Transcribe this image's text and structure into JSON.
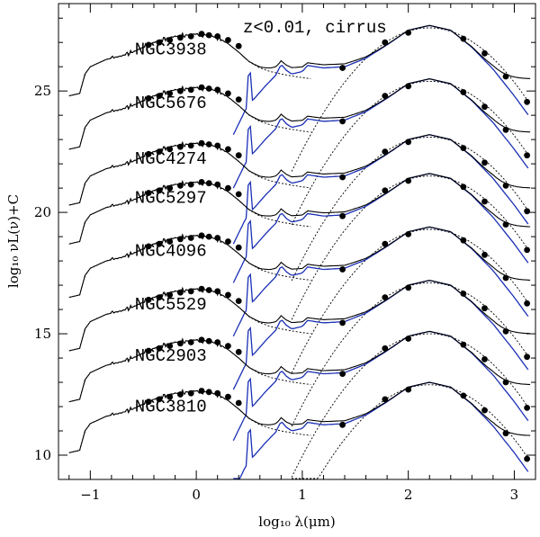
{
  "chart_data": {
    "type": "line",
    "title": "z<0.01, cirrus",
    "xlabel": "log₁₀ λ(μm)",
    "ylabel": "log₁₀ νL(ν)+C",
    "xlim": [
      -1.3,
      3.2
    ],
    "ylim": [
      9.0,
      28.6
    ],
    "x_ticks": [
      -1,
      0,
      1,
      2,
      3
    ],
    "y_ticks": [
      10,
      15,
      20,
      25
    ],
    "x_tick_labels": [
      "−1",
      "0",
      "1",
      "2",
      "3"
    ],
    "y_tick_labels": [
      "10",
      "15",
      "20",
      "25"
    ],
    "colors": {
      "total": "#000000",
      "starburst": "#1a2fb5",
      "component": "#000000",
      "points": "#000000"
    },
    "galaxies": [
      {
        "name": "NGC3938",
        "offset": 25.4
      },
      {
        "name": "NGC5676",
        "offset": 23.2
      },
      {
        "name": "NGC4274",
        "offset": 20.9
      },
      {
        "name": "NGC5297",
        "offset": 19.3
      },
      {
        "name": "NGC4096",
        "offset": 17.1
      },
      {
        "name": "NGC5529",
        "offset": 14.9
      },
      {
        "name": "NGC2903",
        "offset": 12.8
      },
      {
        "name": "NGC3810",
        "offset": 10.7
      }
    ],
    "stellar_template": {
      "x": [
        -1.2,
        -1.1,
        -1.05,
        -1.0,
        -0.95,
        -0.9,
        -0.85,
        -0.8,
        -0.7,
        -0.6,
        -0.5,
        -0.4,
        -0.3,
        -0.2,
        -0.1,
        0.0,
        0.1,
        0.2,
        0.3,
        0.4,
        0.5,
        0.6,
        0.7,
        0.8,
        0.9,
        1.0,
        1.1
      ],
      "y": [
        -0.6,
        -0.5,
        0.3,
        0.6,
        0.7,
        0.8,
        0.9,
        0.95,
        1.05,
        1.2,
        1.4,
        1.6,
        1.75,
        1.85,
        1.9,
        1.95,
        1.9,
        1.8,
        1.55,
        1.2,
        0.8,
        0.55,
        0.4,
        0.3,
        0.22,
        0.15,
        0.1
      ]
    },
    "dust_template": {
      "x": [
        0.35,
        0.45,
        0.5,
        0.55,
        0.65,
        0.75,
        0.8,
        0.85,
        0.9,
        1.0,
        1.05,
        1.2,
        1.4,
        1.6,
        1.8,
        2.0,
        2.2,
        2.4,
        2.6,
        2.8,
        3.0,
        3.15
      ],
      "y": [
        -2.2,
        -1.3,
        -0.9,
        -0.7,
        -0.2,
        0.25,
        0.7,
        0.45,
        0.3,
        0.4,
        0.65,
        0.55,
        0.6,
        0.95,
        1.5,
        2.1,
        2.3,
        2.1,
        1.4,
        0.5,
        -0.6,
        -1.5
      ]
    },
    "photometry_x": [
      -0.45,
      -0.35,
      -0.25,
      -0.15,
      -0.05,
      0.05,
      0.12,
      0.2,
      0.3,
      0.4,
      1.38,
      1.78,
      2.0,
      2.52,
      2.72,
      2.92,
      3.12
    ],
    "photometry_dy": [
      1.5,
      1.6,
      1.7,
      1.8,
      1.85,
      1.95,
      1.9,
      1.85,
      1.7,
      1.45,
      0.55,
      1.6,
      2.0,
      1.75,
      1.15,
      0.2,
      -0.85
    ]
  }
}
